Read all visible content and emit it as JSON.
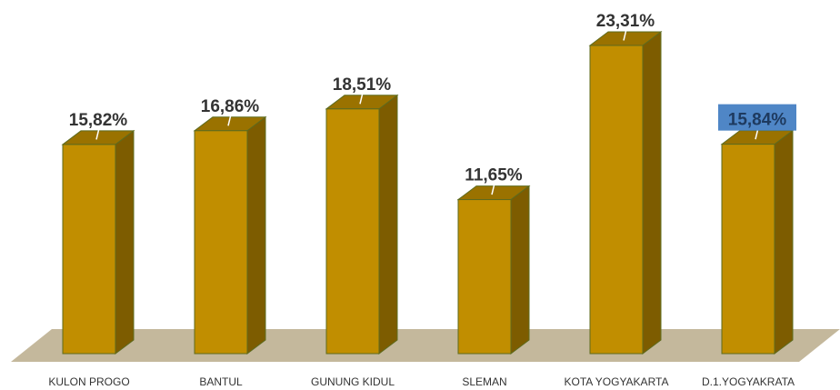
{
  "chart_data": {
    "type": "bar",
    "categories": [
      "KULON PROGO",
      "BANTUL",
      "GUNUNG KIDUL",
      "SLEMAN",
      "KOTA YOGYAKARTA",
      "D.1.YOGYAKRATA"
    ],
    "values": [
      15.82,
      16.86,
      18.51,
      11.65,
      23.31,
      15.84
    ],
    "value_labels": [
      "15,82%",
      "16,86%",
      "18,51%",
      "11,65%",
      "23,31%",
      "15,84%"
    ],
    "highlighted_index": 5,
    "ylim": [
      0,
      23.31
    ],
    "grid": false,
    "legend": "none",
    "three_d": true,
    "colors": {
      "bar_front": "#c18e00",
      "bar_top": "#9a7200",
      "bar_side": "#7d5c00",
      "bar_outline": "#5e6b1e",
      "floor": "#c4b89c",
      "highlight_box": "#4f86c6"
    }
  }
}
